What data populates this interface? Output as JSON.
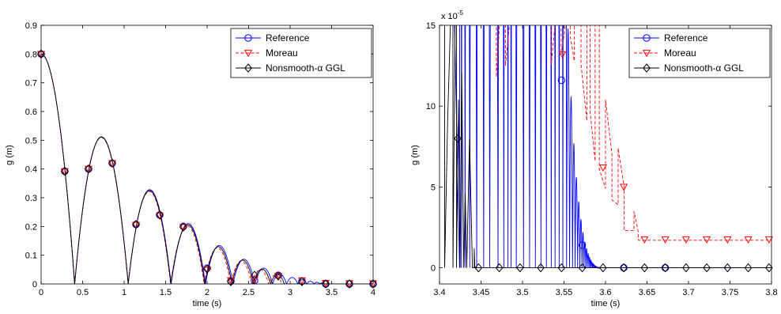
{
  "chart_data": [
    {
      "type": "line",
      "xlabel": "time (s)",
      "ylabel": "g (m)",
      "xlim": [
        0,
        4
      ],
      "ylim": [
        0,
        0.9
      ],
      "xticks": [
        0,
        0.5,
        1,
        1.5,
        2,
        2.5,
        3,
        3.5,
        4
      ],
      "yticks": [
        0,
        0.1,
        0.2,
        0.3,
        0.4,
        0.5,
        0.6,
        0.7,
        0.8,
        0.9
      ],
      "xtick_labels": [
        "0",
        "0.5",
        "1",
        "1.5",
        "2",
        "2.5",
        "3",
        "3.5",
        "4"
      ],
      "ytick_labels": [
        "0",
        "0.1",
        "0.2",
        "0.3",
        "0.4",
        "0.5",
        "0.6",
        "0.7",
        "0.8",
        "0.9"
      ],
      "grid": false,
      "legend_position": "top-right",
      "series": [
        {
          "name": "Reference",
          "color": "#0000ff",
          "line": "solid",
          "marker": "circle",
          "bounces": [
            {
              "t0": 0.0,
              "t1": 0.404,
              "peak_t": 0.0,
              "peak": 0.8,
              "start_at_top": true
            },
            {
              "t0": 0.404,
              "t1": 1.05,
              "peak_t": 0.727,
              "peak": 0.512
            },
            {
              "t0": 1.05,
              "t1": 1.567,
              "peak_t": 1.308,
              "peak": 0.328
            },
            {
              "t0": 1.567,
              "t1": 1.98,
              "peak_t": 1.773,
              "peak": 0.21
            },
            {
              "t0": 1.98,
              "t1": 2.311,
              "peak_t": 2.146,
              "peak": 0.134
            },
            {
              "t0": 2.311,
              "t1": 2.576,
              "peak_t": 2.443,
              "peak": 0.086
            },
            {
              "t0": 2.576,
              "t1": 2.788,
              "peak_t": 2.682,
              "peak": 0.055
            },
            {
              "t0": 2.788,
              "t1": 2.957,
              "peak_t": 2.873,
              "peak": 0.035
            },
            {
              "t0": 2.957,
              "t1": 3.093,
              "peak_t": 3.025,
              "peak": 0.0225
            },
            {
              "t0": 3.093,
              "t1": 3.202,
              "peak_t": 3.147,
              "peak": 0.0144
            },
            {
              "t0": 3.202,
              "t1": 3.289,
              "peak_t": 3.245,
              "peak": 0.0092
            },
            {
              "t0": 3.289,
              "t1": 3.358,
              "peak_t": 3.323,
              "peak": 0.0059
            },
            {
              "t0": 3.358,
              "t1": 3.414,
              "peak_t": 3.386,
              "peak": 0.0038
            }
          ],
          "markers": [
            [
              0.0,
              0.8
            ],
            [
              0.285,
              0.392
            ],
            [
              0.571,
              0.4
            ],
            [
              0.857,
              0.42
            ],
            [
              1.143,
              0.207
            ],
            [
              1.429,
              0.24
            ],
            [
              1.714,
              0.2
            ],
            [
              2.0,
              0.055
            ],
            [
              2.286,
              0.01
            ],
            [
              2.571,
              0.012
            ],
            [
              2.857,
              0.03
            ],
            [
              3.143,
              0.01
            ],
            [
              3.429,
              0.0
            ],
            [
              3.714,
              0.0
            ],
            [
              4.0,
              0.0
            ]
          ]
        },
        {
          "name": "Moreau",
          "color": "#ff0000",
          "line": "dashed",
          "marker": "triangle-down",
          "bounces": [
            {
              "t0": 0.0,
              "t1": 0.404,
              "peak_t": 0.0,
              "peak": 0.8,
              "start_at_top": true
            },
            {
              "t0": 0.404,
              "t1": 1.048,
              "peak_t": 0.726,
              "peak": 0.51
            },
            {
              "t0": 1.048,
              "t1": 1.56,
              "peak_t": 1.304,
              "peak": 0.322
            },
            {
              "t0": 1.56,
              "t1": 1.965,
              "peak_t": 1.762,
              "peak": 0.202
            },
            {
              "t0": 1.965,
              "t1": 2.285,
              "peak_t": 2.125,
              "peak": 0.126
            },
            {
              "t0": 2.285,
              "t1": 2.54,
              "peak_t": 2.412,
              "peak": 0.08
            },
            {
              "t0": 2.54,
              "t1": 2.742,
              "peak_t": 2.641,
              "peak": 0.05
            },
            {
              "t0": 2.742,
              "t1": 2.902,
              "peak_t": 2.822,
              "peak": 0.031
            }
          ],
          "markers": [
            [
              0.0,
              0.8
            ],
            [
              0.285,
              0.392
            ],
            [
              0.571,
              0.4
            ],
            [
              0.857,
              0.42
            ],
            [
              1.143,
              0.205
            ],
            [
              1.429,
              0.238
            ],
            [
              1.714,
              0.198
            ],
            [
              2.0,
              0.05
            ],
            [
              2.286,
              0.012
            ],
            [
              2.571,
              0.016
            ],
            [
              2.857,
              0.028
            ],
            [
              3.143,
              0.012
            ],
            [
              3.429,
              0.003
            ],
            [
              3.714,
              0.002
            ],
            [
              4.0,
              0.002
            ]
          ]
        },
        {
          "name": "Nonsmooth-α GGL",
          "color": "#000000",
          "line": "solid",
          "marker": "diamond",
          "bounces": [
            {
              "t0": 0.0,
              "t1": 0.404,
              "peak_t": 0.0,
              "peak": 0.8,
              "start_at_top": true
            },
            {
              "t0": 0.404,
              "t1": 1.049,
              "peak_t": 0.727,
              "peak": 0.511
            },
            {
              "t0": 1.049,
              "t1": 1.563,
              "peak_t": 1.306,
              "peak": 0.325
            },
            {
              "t0": 1.563,
              "t1": 1.972,
              "peak_t": 1.768,
              "peak": 0.206
            },
            {
              "t0": 1.972,
              "t1": 2.298,
              "peak_t": 2.135,
              "peak": 0.13
            },
            {
              "t0": 2.298,
              "t1": 2.558,
              "peak_t": 2.428,
              "peak": 0.083
            },
            {
              "t0": 2.558,
              "t1": 2.765,
              "peak_t": 2.662,
              "peak": 0.052
            },
            {
              "t0": 2.765,
              "t1": 2.93,
              "peak_t": 2.848,
              "peak": 0.033
            }
          ],
          "markers": [
            [
              0.0,
              0.8
            ],
            [
              0.285,
              0.392
            ],
            [
              0.571,
              0.4
            ],
            [
              0.857,
              0.42
            ],
            [
              1.143,
              0.207
            ],
            [
              1.429,
              0.24
            ],
            [
              1.714,
              0.198
            ],
            [
              2.0,
              0.052
            ],
            [
              2.286,
              0.008
            ],
            [
              2.571,
              0.03
            ],
            [
              2.857,
              0.028
            ],
            [
              3.143,
              0.008
            ],
            [
              3.429,
              0.0
            ],
            [
              3.714,
              0.0
            ],
            [
              4.0,
              0.0
            ]
          ]
        }
      ]
    },
    {
      "type": "line",
      "xlabel": "time (s)",
      "ylabel": "g (m)",
      "y_multiplier_label": "x 10",
      "y_multiplier_exponent": "-5",
      "xlim": [
        3.4,
        3.8
      ],
      "ylim": [
        -1.0,
        15
      ],
      "xticks": [
        3.4,
        3.45,
        3.5,
        3.55,
        3.6,
        3.65,
        3.7,
        3.75,
        3.8
      ],
      "yticks": [
        0,
        5,
        10,
        15
      ],
      "xtick_labels": [
        "3.4",
        "3.45",
        "3.5",
        "3.55",
        "3.6",
        "3.65",
        "3.7",
        "3.75",
        "3.8"
      ],
      "ytick_labels": [
        "0",
        "5",
        "10",
        "15"
      ],
      "grid": false,
      "legend_position": "top-right",
      "series": [
        {
          "name": "Reference",
          "color": "#0000ff",
          "line": "solid",
          "marker": "circle",
          "bounce_times": [
            3.4242,
            3.4265,
            3.4308,
            3.4364,
            3.4448,
            3.4532,
            3.4605,
            3.4705,
            3.4775,
            3.4825,
            3.4862,
            3.4925,
            3.5012,
            3.5085,
            3.5155,
            3.5222,
            3.5288,
            3.5346,
            3.5392,
            3.5442,
            3.5486,
            3.5531,
            3.5567,
            3.5603,
            3.5634,
            3.5664,
            3.5691,
            3.5717,
            3.574,
            3.5762,
            3.5781,
            3.58,
            3.5815,
            3.583,
            3.5843,
            3.5856,
            3.5867,
            3.5877,
            3.5886,
            3.5895,
            3.5903,
            3.591,
            3.5917,
            3.5923,
            3.5928,
            3.5933,
            3.5937
          ],
          "bounce_peaks": [
            60,
            60,
            60,
            60,
            60,
            60,
            60,
            60,
            60,
            60,
            60,
            60,
            60,
            60,
            60,
            60,
            60,
            60,
            60,
            60,
            60,
            14.8,
            10.6,
            7.7,
            5.6,
            4.1,
            3.0,
            2.2,
            1.6,
            1.2,
            0.88,
            0.65,
            0.48,
            0.35,
            0.26,
            0.19,
            0.14,
            0.1,
            0.075,
            0.055,
            0.04,
            0.03,
            0.02,
            0.015,
            0.01,
            0.006
          ],
          "markers": [
            [
              3.547,
              11.6
            ],
            [
              3.572,
              1.4
            ],
            [
              3.622,
              0.0
            ],
            [
              3.672,
              0.0
            ]
          ]
        },
        {
          "name": "Moreau",
          "color": "#ff0000",
          "line": "dashed",
          "marker": "triangle-down",
          "path": [
            [
              3.4685,
              15.2
            ],
            [
              3.4685,
              11.8
            ],
            [
              3.4725,
              15.2
            ],
            [
              3.4795,
              15.2
            ],
            [
              3.4795,
              12.5
            ],
            [
              3.4845,
              15.2
            ],
            [
              3.5345,
              15.2
            ],
            [
              3.5345,
              12.5
            ],
            [
              3.5395,
              15.2
            ],
            [
              3.5465,
              15.2
            ],
            [
              3.5465,
              13.2
            ],
            [
              3.5525,
              15.2
            ],
            [
              3.5575,
              15.2
            ],
            [
              3.5575,
              14.3
            ],
            [
              3.5625,
              12.8
            ],
            [
              3.5625,
              15.2
            ],
            [
              3.5705,
              15.2
            ],
            [
              3.5705,
              12.6
            ],
            [
              3.5775,
              9.1
            ],
            [
              3.5775,
              15.2
            ],
            [
              3.5815,
              15.2
            ],
            [
              3.5815,
              9.6
            ],
            [
              3.5875,
              6.6
            ],
            [
              3.5875,
              15.2
            ],
            [
              3.5925,
              15.2
            ],
            [
              3.5925,
              6.1
            ],
            [
              3.6,
              4.9
            ],
            [
              3.6,
              10.4
            ],
            [
              3.6078,
              7.0
            ],
            [
              3.6078,
              4.2
            ],
            [
              3.6152,
              3.9
            ],
            [
              3.6152,
              7.4
            ],
            [
              3.6225,
              5.0
            ],
            [
              3.6225,
              2.3
            ],
            [
              3.63,
              2.3
            ],
            [
              3.6343,
              2.3
            ],
            [
              3.6343,
              3.5
            ],
            [
              3.6395,
              2.2
            ],
            [
              3.6395,
              1.7
            ],
            [
              3.8,
              1.7
            ]
          ],
          "markers": [
            [
              3.548,
              13.2
            ],
            [
              3.597,
              6.2
            ],
            [
              3.622,
              5.0
            ],
            [
              3.647,
              1.75
            ],
            [
              3.672,
              1.75
            ],
            [
              3.697,
              1.75
            ],
            [
              3.722,
              1.75
            ],
            [
              3.747,
              1.75
            ],
            [
              3.772,
              1.75
            ],
            [
              3.797,
              1.75
            ]
          ]
        },
        {
          "name": "Nonsmooth-α GGL",
          "color": "#000000",
          "line": "solid",
          "marker": "diamond",
          "path": [
            [
              3.4,
              15.2
            ],
            [
              3.4062,
              15.2
            ],
            [
              3.4062,
              0.0
            ],
            [
              3.4098,
              9.1
            ],
            [
              3.4132,
              15.2
            ],
            [
              3.4162,
              15.2
            ],
            [
              3.4162,
              0.0
            ],
            [
              3.4188,
              15.2
            ],
            [
              3.4205,
              15.2
            ],
            [
              3.4205,
              0.0
            ],
            [
              3.4228,
              10.4
            ],
            [
              3.4248,
              0.0
            ],
            [
              3.4268,
              12.1
            ],
            [
              3.4292,
              0.0
            ],
            [
              3.431,
              4.6
            ],
            [
              3.4328,
              0.0
            ],
            [
              3.4362,
              8.0
            ],
            [
              3.4396,
              0.0
            ],
            [
              3.4418,
              0.0
            ],
            [
              3.4418,
              1.2
            ],
            [
              3.4425,
              0.0
            ],
            [
              3.8,
              0.0
            ]
          ],
          "markers": [
            [
              3.422,
              8.0
            ],
            [
              3.447,
              0.0
            ],
            [
              3.472,
              0.0
            ],
            [
              3.497,
              0.0
            ],
            [
              3.522,
              0.0
            ],
            [
              3.547,
              0.0
            ],
            [
              3.572,
              0.0
            ],
            [
              3.597,
              0.0
            ],
            [
              3.622,
              0.0
            ],
            [
              3.647,
              0.0
            ],
            [
              3.672,
              0.0
            ],
            [
              3.697,
              0.0
            ],
            [
              3.722,
              0.0
            ],
            [
              3.747,
              0.0
            ],
            [
              3.772,
              0.0
            ],
            [
              3.797,
              0.0
            ]
          ]
        }
      ]
    }
  ]
}
